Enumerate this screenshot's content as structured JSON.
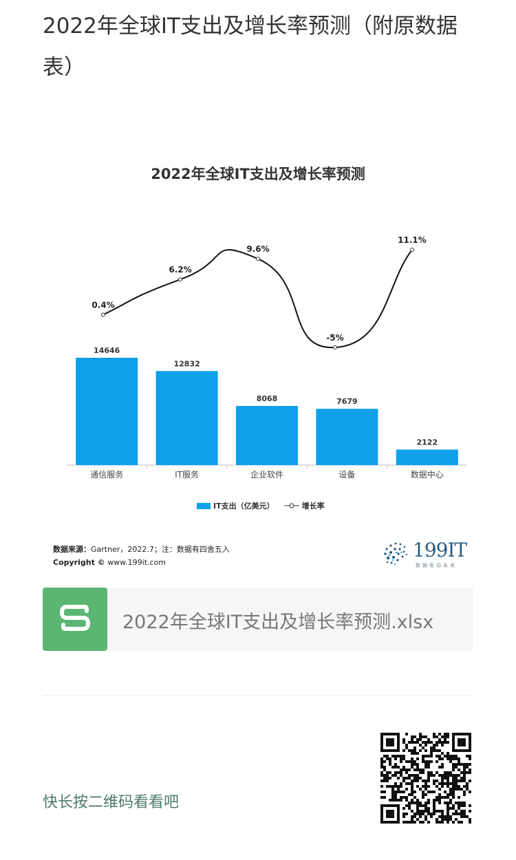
{
  "article": {
    "title": "2022年全球IT支出及增长率预测（附原数据表）"
  },
  "chart_data": {
    "type": "bar",
    "title": "2022年全球IT支出及增长率预测",
    "categories": [
      "通信服务",
      "IT服务",
      "企业软件",
      "设备",
      "数据中心"
    ],
    "series": [
      {
        "name": "IT支出（亿美元）",
        "type": "bar",
        "values": [
          14646,
          12832,
          8068,
          7679,
          2122
        ],
        "labels": [
          "14646",
          "12832",
          "8068",
          "7679",
          "2122"
        ],
        "color": "#0ea0e8"
      },
      {
        "name": "增长率",
        "type": "line",
        "values": [
          0.4,
          6.2,
          9.6,
          -5,
          11.1
        ],
        "labels": [
          "0.4%",
          "6.2%",
          "9.6%",
          "-5%",
          "11.1%"
        ],
        "color": "#111111"
      }
    ],
    "legend_position": "bottom",
    "grid": false
  },
  "legend": {
    "bar_label": "IT支出（亿美元）",
    "line_label": "增长率"
  },
  "source": {
    "label": "数据来源：",
    "text": "Gartner，2022.7；注：数据有四舍五入",
    "copyright_label": "Copyright ©",
    "copyright_text": " www.199it.com"
  },
  "logo": {
    "text": "199IT",
    "tagline": "数据驱动未来"
  },
  "attachment": {
    "file_name": "2022年全球IT支出及增长率预测.xlsx",
    "icon": "spreadsheet-s-icon",
    "icon_color": "#5bb573"
  },
  "footer": {
    "qr_hint": "快长按二维码看看吧"
  }
}
